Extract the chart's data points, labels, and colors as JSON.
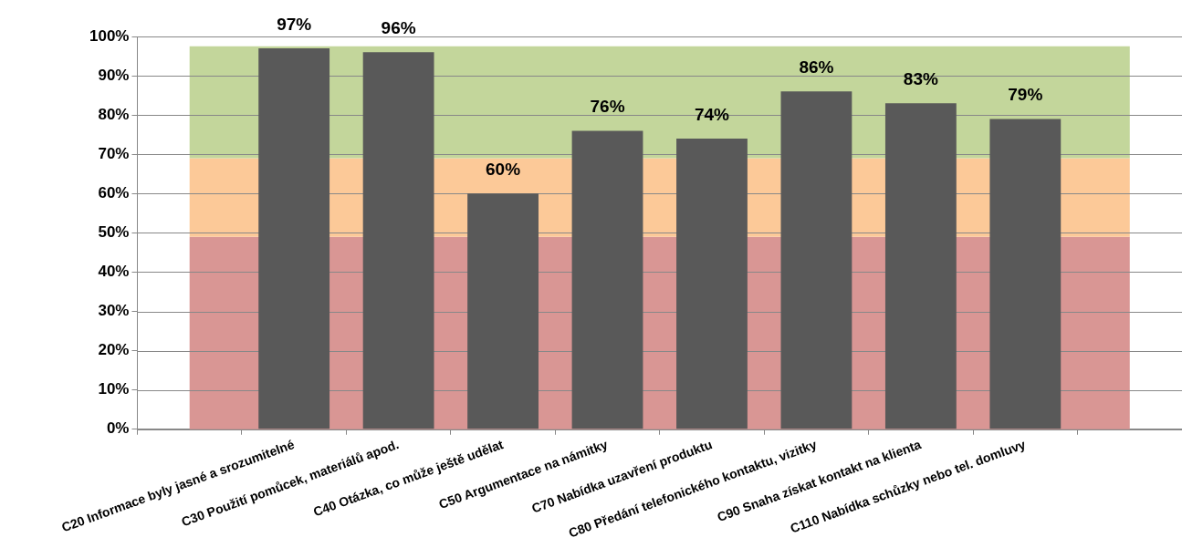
{
  "chart_data": {
    "type": "bar",
    "categories": [
      null,
      "C20 Informace byly jasné a srozumitelné",
      "C30 Použití pomůcek, materiálů apod.",
      "C40 Otázka, co může ještě udělat",
      "C50 Argumentace na námitky",
      "C70 Nabídka uzavření produktu",
      "C80 Předání telefonického kontaktu, vizitky",
      "C90 Snaha získat kontakt na klienta",
      "C110 Nabídka schůzky nebo tel. domluvy",
      null
    ],
    "values": [
      null,
      97,
      96,
      60,
      76,
      74,
      86,
      83,
      79,
      null
    ],
    "value_labels": [
      null,
      "97%",
      "96%",
      "60%",
      "76%",
      "74%",
      "86%",
      "83%",
      "79%",
      null
    ],
    "color": "#595959",
    "ylim": [
      0,
      100
    ],
    "yticks": [
      {
        "value": 0,
        "label": "0%"
      },
      {
        "value": 10,
        "label": "10%"
      },
      {
        "value": 20,
        "label": "20%"
      },
      {
        "value": 30,
        "label": "30%"
      },
      {
        "value": 40,
        "label": "40%"
      },
      {
        "value": 50,
        "label": "50%"
      },
      {
        "value": 60,
        "label": "60%"
      },
      {
        "value": 70,
        "label": "70%"
      },
      {
        "value": 80,
        "label": "80%"
      },
      {
        "value": 90,
        "label": "90%"
      },
      {
        "value": 100,
        "label": "100%"
      }
    ],
    "grid": "y",
    "legend": false,
    "bands": [
      {
        "axis": "y",
        "from": 0,
        "to": 49,
        "color": "#d99694"
      },
      {
        "axis": "y",
        "from": 49,
        "to": 69,
        "color": "#fcc998"
      },
      {
        "axis": "y",
        "from": 69,
        "to": 97.5,
        "color": "#c3d69b"
      }
    ]
  }
}
